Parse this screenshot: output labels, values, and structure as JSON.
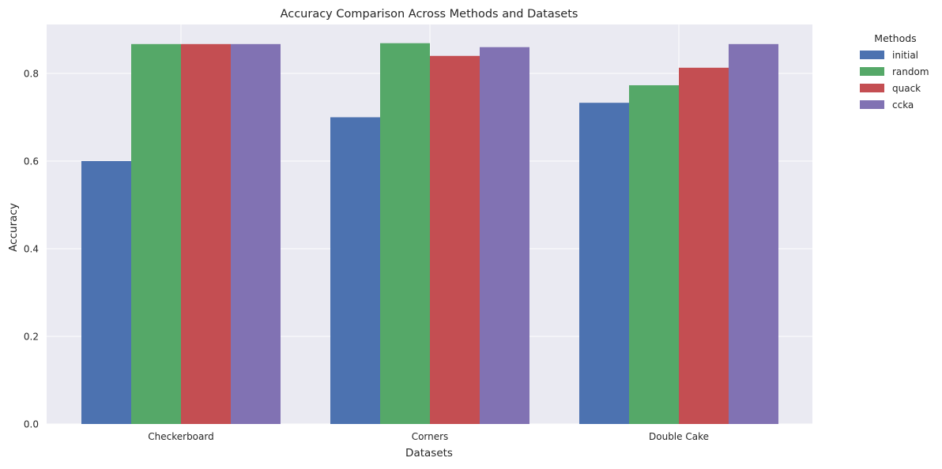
{
  "chart_data": {
    "type": "bar",
    "title": "Accuracy Comparison Across Methods and Datasets",
    "xlabel": "Datasets",
    "ylabel": "Accuracy",
    "categories": [
      "Checkerboard",
      "Corners",
      "Double Cake"
    ],
    "ylim": [
      0,
      0.9
    ],
    "yticks": [
      "0.0",
      "0.2",
      "0.4",
      "0.6",
      "0.8"
    ],
    "grid": true,
    "legend_title": "Methods",
    "legend_position": "outside-top-right",
    "series": [
      {
        "name": "initial",
        "color": "#4c72b0",
        "values": [
          0.6,
          0.7,
          0.733
        ]
      },
      {
        "name": "random",
        "color": "#55a868",
        "values": [
          0.867,
          0.869,
          0.773
        ]
      },
      {
        "name": "quack",
        "color": "#c44e52",
        "values": [
          0.867,
          0.84,
          0.813
        ]
      },
      {
        "name": "ccka",
        "color": "#8172b3",
        "values": [
          0.867,
          0.86,
          0.867
        ]
      }
    ]
  }
}
